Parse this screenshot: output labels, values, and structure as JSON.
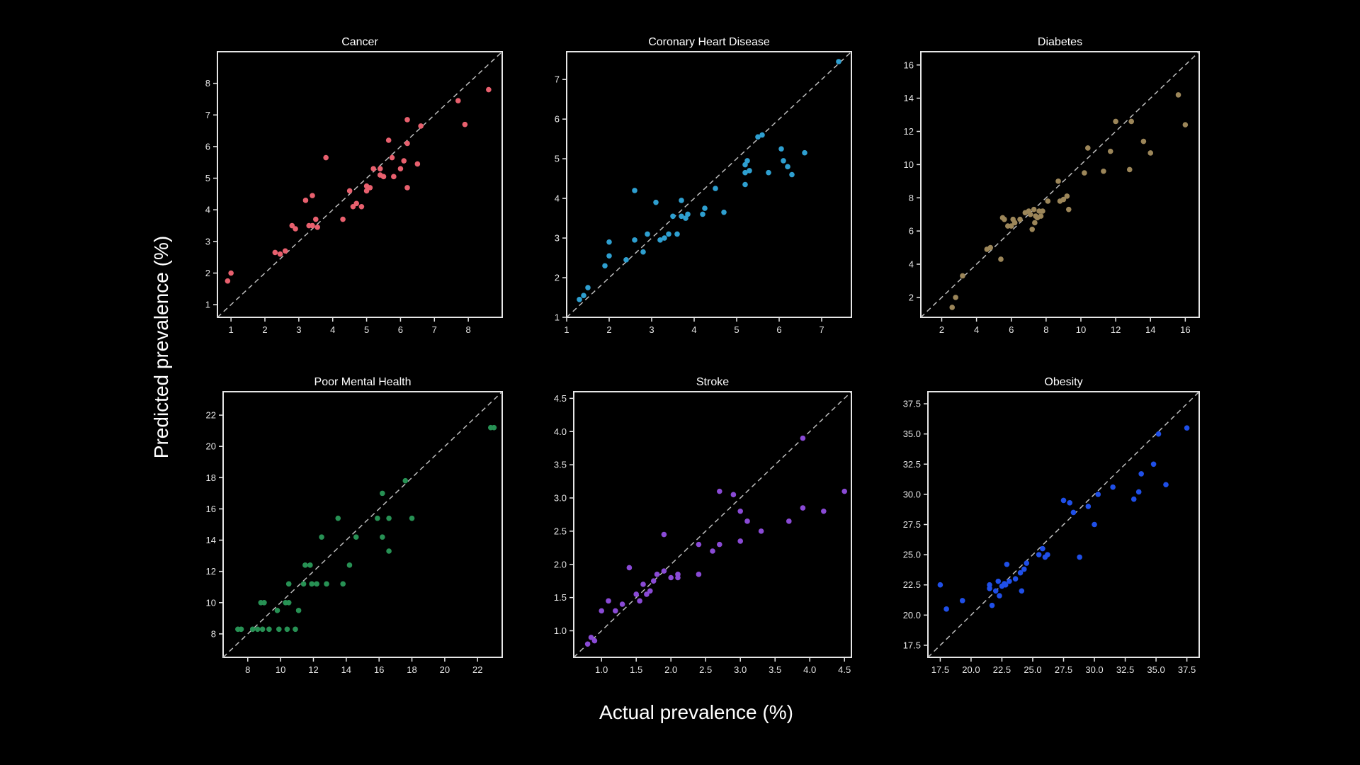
{
  "figure": {
    "ylabel": "Predicted prevalence (%)",
    "xlabel": "Actual prevalence (%)"
  },
  "chart_data": [
    {
      "type": "scatter",
      "title": "Cancer",
      "color": "#e8606e",
      "xlim": [
        0.6,
        9.0
      ],
      "ylim": [
        0.6,
        9.0
      ],
      "xticks": [
        1,
        2,
        3,
        4,
        5,
        6,
        7,
        8
      ],
      "yticks": [
        1,
        2,
        3,
        4,
        5,
        6,
        7,
        8
      ],
      "identity_line": true,
      "points": [
        [
          0.9,
          1.75
        ],
        [
          1.0,
          2.0
        ],
        [
          2.3,
          2.65
        ],
        [
          2.45,
          2.6
        ],
        [
          2.6,
          2.7
        ],
        [
          2.8,
          3.5
        ],
        [
          2.9,
          3.4
        ],
        [
          3.2,
          4.3
        ],
        [
          3.3,
          3.5
        ],
        [
          3.4,
          3.5
        ],
        [
          3.4,
          4.45
        ],
        [
          3.5,
          3.7
        ],
        [
          3.55,
          3.45
        ],
        [
          3.8,
          5.65
        ],
        [
          4.3,
          3.7
        ],
        [
          4.5,
          4.6
        ],
        [
          4.6,
          4.1
        ],
        [
          4.7,
          4.2
        ],
        [
          4.85,
          4.1
        ],
        [
          5.0,
          4.75
        ],
        [
          5.0,
          4.6
        ],
        [
          5.1,
          4.7
        ],
        [
          5.2,
          5.3
        ],
        [
          5.4,
          5.3
        ],
        [
          5.4,
          5.1
        ],
        [
          5.5,
          5.05
        ],
        [
          5.65,
          6.2
        ],
        [
          5.75,
          5.65
        ],
        [
          5.8,
          5.05
        ],
        [
          6.0,
          5.3
        ],
        [
          6.1,
          5.55
        ],
        [
          6.2,
          6.85
        ],
        [
          6.2,
          6.1
        ],
        [
          6.2,
          4.7
        ],
        [
          6.5,
          5.45
        ],
        [
          6.6,
          6.65
        ],
        [
          7.7,
          7.45
        ],
        [
          7.9,
          6.7
        ],
        [
          8.6,
          7.8
        ]
      ]
    },
    {
      "type": "scatter",
      "title": "Coronary Heart Disease",
      "color": "#2e9fd0",
      "xlim": [
        1.0,
        7.7
      ],
      "ylim": [
        1.0,
        7.7
      ],
      "xticks": [
        1,
        2,
        3,
        4,
        5,
        6,
        7
      ],
      "yticks": [
        1,
        2,
        3,
        4,
        5,
        6,
        7
      ],
      "identity_line": true,
      "points": [
        [
          1.3,
          1.45
        ],
        [
          1.4,
          1.55
        ],
        [
          1.5,
          1.75
        ],
        [
          1.9,
          2.3
        ],
        [
          2.0,
          2.55
        ],
        [
          2.0,
          2.9
        ],
        [
          2.4,
          2.45
        ],
        [
          2.6,
          2.95
        ],
        [
          2.6,
          4.2
        ],
        [
          2.8,
          2.65
        ],
        [
          2.9,
          3.1
        ],
        [
          3.1,
          3.9
        ],
        [
          3.2,
          2.95
        ],
        [
          3.3,
          3.0
        ],
        [
          3.4,
          3.1
        ],
        [
          3.5,
          3.55
        ],
        [
          3.6,
          3.1
        ],
        [
          3.7,
          3.55
        ],
        [
          3.7,
          3.95
        ],
        [
          3.8,
          3.5
        ],
        [
          3.85,
          3.6
        ],
        [
          4.2,
          3.6
        ],
        [
          4.25,
          3.75
        ],
        [
          4.5,
          4.25
        ],
        [
          4.7,
          3.65
        ],
        [
          5.2,
          4.35
        ],
        [
          5.2,
          4.65
        ],
        [
          5.2,
          4.85
        ],
        [
          5.25,
          4.95
        ],
        [
          5.3,
          4.7
        ],
        [
          5.5,
          5.55
        ],
        [
          5.6,
          5.6
        ],
        [
          5.75,
          4.65
        ],
        [
          6.05,
          5.25
        ],
        [
          6.1,
          4.95
        ],
        [
          6.2,
          4.8
        ],
        [
          6.3,
          4.6
        ],
        [
          6.6,
          5.15
        ],
        [
          7.4,
          7.45
        ]
      ]
    },
    {
      "type": "scatter",
      "title": "Diabetes",
      "color": "#9c8659",
      "xlim": [
        0.8,
        16.8
      ],
      "ylim": [
        0.8,
        16.8
      ],
      "xticks": [
        2,
        4,
        6,
        8,
        10,
        12,
        14,
        16
      ],
      "yticks": [
        2,
        4,
        6,
        8,
        10,
        12,
        14,
        16
      ],
      "identity_line": true,
      "points": [
        [
          2.6,
          1.4
        ],
        [
          2.8,
          2.0
        ],
        [
          3.2,
          3.3
        ],
        [
          4.6,
          4.9
        ],
        [
          4.8,
          5.0
        ],
        [
          5.4,
          4.3
        ],
        [
          5.5,
          6.8
        ],
        [
          5.6,
          6.7
        ],
        [
          5.8,
          6.3
        ],
        [
          6.0,
          6.3
        ],
        [
          6.1,
          6.7
        ],
        [
          6.2,
          6.5
        ],
        [
          6.5,
          6.7
        ],
        [
          6.8,
          7.1
        ],
        [
          7.0,
          7.2
        ],
        [
          7.1,
          7.0
        ],
        [
          7.2,
          6.1
        ],
        [
          7.3,
          7.3
        ],
        [
          7.35,
          6.5
        ],
        [
          7.4,
          6.9
        ],
        [
          7.5,
          6.8
        ],
        [
          7.6,
          7.2
        ],
        [
          7.7,
          6.9
        ],
        [
          7.8,
          7.2
        ],
        [
          8.1,
          7.8
        ],
        [
          8.7,
          9.0
        ],
        [
          8.8,
          7.8
        ],
        [
          9.0,
          7.9
        ],
        [
          9.2,
          8.1
        ],
        [
          9.3,
          7.3
        ],
        [
          10.2,
          9.5
        ],
        [
          10.4,
          11.0
        ],
        [
          11.3,
          9.6
        ],
        [
          11.7,
          10.8
        ],
        [
          12.0,
          12.6
        ],
        [
          12.8,
          9.7
        ],
        [
          12.9,
          12.6
        ],
        [
          13.6,
          11.4
        ],
        [
          14.0,
          10.7
        ],
        [
          15.6,
          14.2
        ],
        [
          16.0,
          12.4
        ]
      ]
    },
    {
      "type": "scatter",
      "title": "Poor Mental Health",
      "color": "#279154",
      "xlim": [
        6.5,
        23.5
      ],
      "ylim": [
        6.5,
        23.5
      ],
      "xticks": [
        8,
        10,
        12,
        14,
        16,
        18,
        20,
        22
      ],
      "yticks": [
        8,
        10,
        12,
        14,
        16,
        18,
        20,
        22
      ],
      "identity_line": true,
      "points": [
        [
          7.4,
          8.3
        ],
        [
          7.6,
          8.3
        ],
        [
          8.3,
          8.3
        ],
        [
          8.6,
          8.3
        ],
        [
          8.8,
          10.0
        ],
        [
          8.9,
          8.3
        ],
        [
          9.0,
          10.0
        ],
        [
          9.3,
          8.3
        ],
        [
          9.8,
          9.5
        ],
        [
          9.9,
          8.3
        ],
        [
          10.3,
          10.0
        ],
        [
          10.5,
          10.0
        ],
        [
          10.4,
          8.3
        ],
        [
          10.5,
          11.2
        ],
        [
          10.9,
          8.3
        ],
        [
          11.1,
          9.5
        ],
        [
          11.4,
          11.2
        ],
        [
          11.5,
          12.4
        ],
        [
          11.8,
          12.4
        ],
        [
          11.9,
          11.2
        ],
        [
          12.2,
          11.2
        ],
        [
          12.5,
          14.2
        ],
        [
          12.8,
          11.2
        ],
        [
          13.5,
          15.4
        ],
        [
          13.8,
          11.2
        ],
        [
          14.2,
          12.4
        ],
        [
          14.6,
          14.2
        ],
        [
          15.9,
          15.4
        ],
        [
          16.2,
          14.2
        ],
        [
          16.2,
          17.0
        ],
        [
          16.6,
          15.4
        ],
        [
          16.6,
          13.3
        ],
        [
          17.6,
          17.8
        ],
        [
          18.0,
          15.4
        ],
        [
          22.8,
          21.2
        ],
        [
          23.0,
          21.2
        ]
      ]
    },
    {
      "type": "scatter",
      "title": "Stroke",
      "color": "#8a4ad6",
      "xlim": [
        0.6,
        4.6
      ],
      "ylim": [
        0.6,
        4.6
      ],
      "xticks": [
        1.0,
        1.5,
        2.0,
        2.5,
        3.0,
        3.5,
        4.0,
        4.5
      ],
      "yticks": [
        1.0,
        1.5,
        2.0,
        2.5,
        3.0,
        3.5,
        4.0,
        4.5
      ],
      "identity_line": true,
      "points": [
        [
          0.8,
          0.8
        ],
        [
          0.85,
          0.9
        ],
        [
          0.9,
          0.85
        ],
        [
          1.0,
          1.3
        ],
        [
          1.1,
          1.45
        ],
        [
          1.2,
          1.3
        ],
        [
          1.3,
          1.4
        ],
        [
          1.4,
          1.95
        ],
        [
          1.5,
          1.55
        ],
        [
          1.55,
          1.45
        ],
        [
          1.6,
          1.7
        ],
        [
          1.65,
          1.55
        ],
        [
          1.7,
          1.6
        ],
        [
          1.75,
          1.75
        ],
        [
          1.8,
          1.85
        ],
        [
          1.9,
          1.9
        ],
        [
          1.9,
          2.45
        ],
        [
          2.0,
          1.8
        ],
        [
          2.1,
          1.85
        ],
        [
          2.1,
          1.8
        ],
        [
          2.4,
          2.3
        ],
        [
          2.4,
          1.85
        ],
        [
          2.6,
          2.2
        ],
        [
          2.7,
          2.3
        ],
        [
          2.7,
          3.1
        ],
        [
          2.9,
          3.05
        ],
        [
          3.0,
          2.35
        ],
        [
          3.0,
          2.8
        ],
        [
          3.1,
          2.65
        ],
        [
          3.3,
          2.5
        ],
        [
          3.7,
          2.65
        ],
        [
          3.9,
          3.9
        ],
        [
          3.9,
          2.85
        ],
        [
          4.2,
          2.8
        ],
        [
          4.5,
          3.1
        ]
      ]
    },
    {
      "type": "scatter",
      "title": "Obesity",
      "color": "#1f4fe8",
      "xlim": [
        16.5,
        38.5
      ],
      "ylim": [
        16.5,
        38.5
      ],
      "xticks": [
        17.5,
        20.0,
        22.5,
        25.0,
        27.5,
        30.0,
        32.5,
        35.0,
        37.5
      ],
      "yticks": [
        17.5,
        20.0,
        22.5,
        25.0,
        27.5,
        30.0,
        32.5,
        35.0,
        37.5
      ],
      "identity_line": true,
      "points": [
        [
          17.5,
          22.5
        ],
        [
          18.0,
          20.5
        ],
        [
          19.3,
          21.2
        ],
        [
          21.5,
          22.5
        ],
        [
          21.5,
          22.2
        ],
        [
          21.7,
          20.8
        ],
        [
          22.0,
          22.0
        ],
        [
          22.2,
          22.8
        ],
        [
          22.3,
          21.6
        ],
        [
          22.5,
          22.4
        ],
        [
          22.7,
          22.6
        ],
        [
          22.8,
          22.5
        ],
        [
          22.9,
          24.2
        ],
        [
          23.1,
          22.8
        ],
        [
          23.6,
          23.0
        ],
        [
          24.0,
          23.5
        ],
        [
          24.1,
          22.0
        ],
        [
          24.3,
          23.8
        ],
        [
          24.5,
          24.3
        ],
        [
          25.5,
          25.0
        ],
        [
          25.8,
          25.5
        ],
        [
          26.0,
          24.8
        ],
        [
          26.2,
          25.0
        ],
        [
          27.5,
          29.5
        ],
        [
          28.0,
          29.3
        ],
        [
          28.3,
          28.5
        ],
        [
          28.8,
          24.8
        ],
        [
          29.5,
          29.0
        ],
        [
          30.0,
          27.5
        ],
        [
          30.3,
          30.0
        ],
        [
          31.5,
          30.6
        ],
        [
          33.2,
          29.6
        ],
        [
          33.6,
          30.2
        ],
        [
          33.8,
          31.7
        ],
        [
          34.8,
          32.5
        ],
        [
          35.2,
          35.0
        ],
        [
          35.8,
          30.8
        ],
        [
          37.5,
          35.5
        ]
      ]
    }
  ]
}
